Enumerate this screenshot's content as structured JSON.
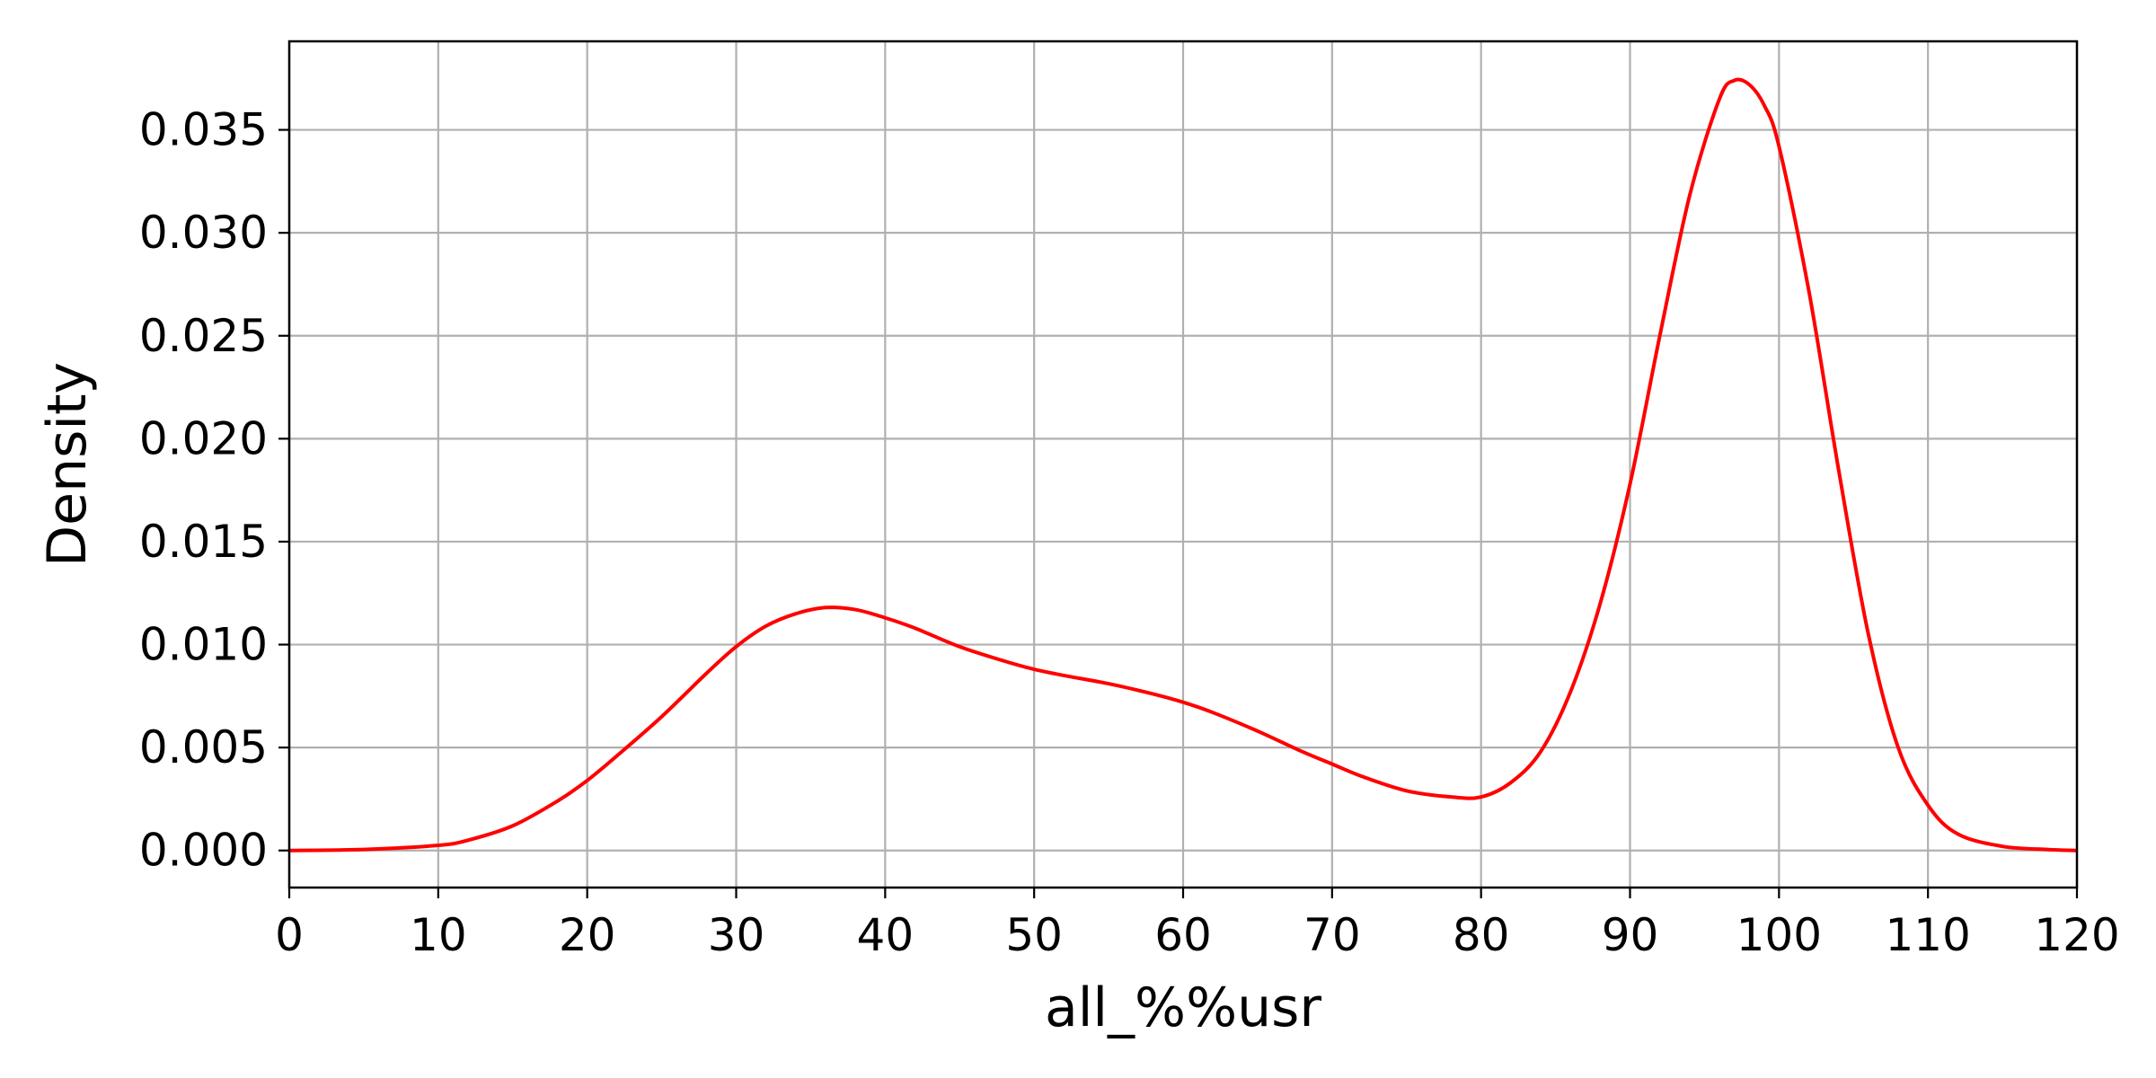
{
  "chart_data": {
    "type": "line",
    "title": "",
    "xlabel": "all_%%usr",
    "ylabel": "Density",
    "xlim": [
      0,
      120
    ],
    "ylim": [
      -0.0018,
      0.0393
    ],
    "xticks": [
      0,
      10,
      20,
      30,
      40,
      50,
      60,
      70,
      80,
      90,
      100,
      110,
      120
    ],
    "xtick_labels": [
      "0",
      "10",
      "20",
      "30",
      "40",
      "50",
      "60",
      "70",
      "80",
      "90",
      "100",
      "110",
      "120"
    ],
    "yticks": [
      0.0,
      0.005,
      0.01,
      0.015,
      0.02,
      0.025,
      0.03,
      0.035
    ],
    "ytick_labels": [
      "0.000",
      "0.005",
      "0.010",
      "0.015",
      "0.020",
      "0.025",
      "0.030",
      "0.035"
    ],
    "grid": true,
    "legend": "none",
    "line_color": "#ff0000",
    "series": [
      {
        "x": [
          0,
          5,
          10,
          12,
          15,
          18,
          20,
          22,
          25,
          28,
          30,
          32,
          34,
          36,
          38,
          40,
          42,
          45,
          48,
          50,
          52,
          55,
          58,
          60,
          62,
          65,
          68,
          70,
          72,
          75,
          78,
          80,
          82,
          84,
          86,
          88,
          90,
          92,
          94,
          96,
          97,
          98,
          99,
          100,
          102,
          104,
          106,
          108,
          110,
          112,
          115,
          118,
          120
        ],
        "y": [
          0.0,
          5e-05,
          0.00025,
          0.0005,
          0.0012,
          0.0024,
          0.0034,
          0.0046,
          0.0065,
          0.0086,
          0.0099,
          0.0109,
          0.0115,
          0.0118,
          0.0117,
          0.0113,
          0.0108,
          0.0099,
          0.0092,
          0.0088,
          0.0085,
          0.0081,
          0.0076,
          0.0072,
          0.0067,
          0.0058,
          0.0048,
          0.0042,
          0.0036,
          0.0029,
          0.0026,
          0.0026,
          0.0033,
          0.0048,
          0.0077,
          0.012,
          0.0178,
          0.025,
          0.0318,
          0.0365,
          0.0374,
          0.0372,
          0.0362,
          0.0342,
          0.0272,
          0.0185,
          0.0105,
          0.005,
          0.0022,
          0.0008,
          0.0002,
          5e-05,
          0.0
        ]
      }
    ]
  }
}
